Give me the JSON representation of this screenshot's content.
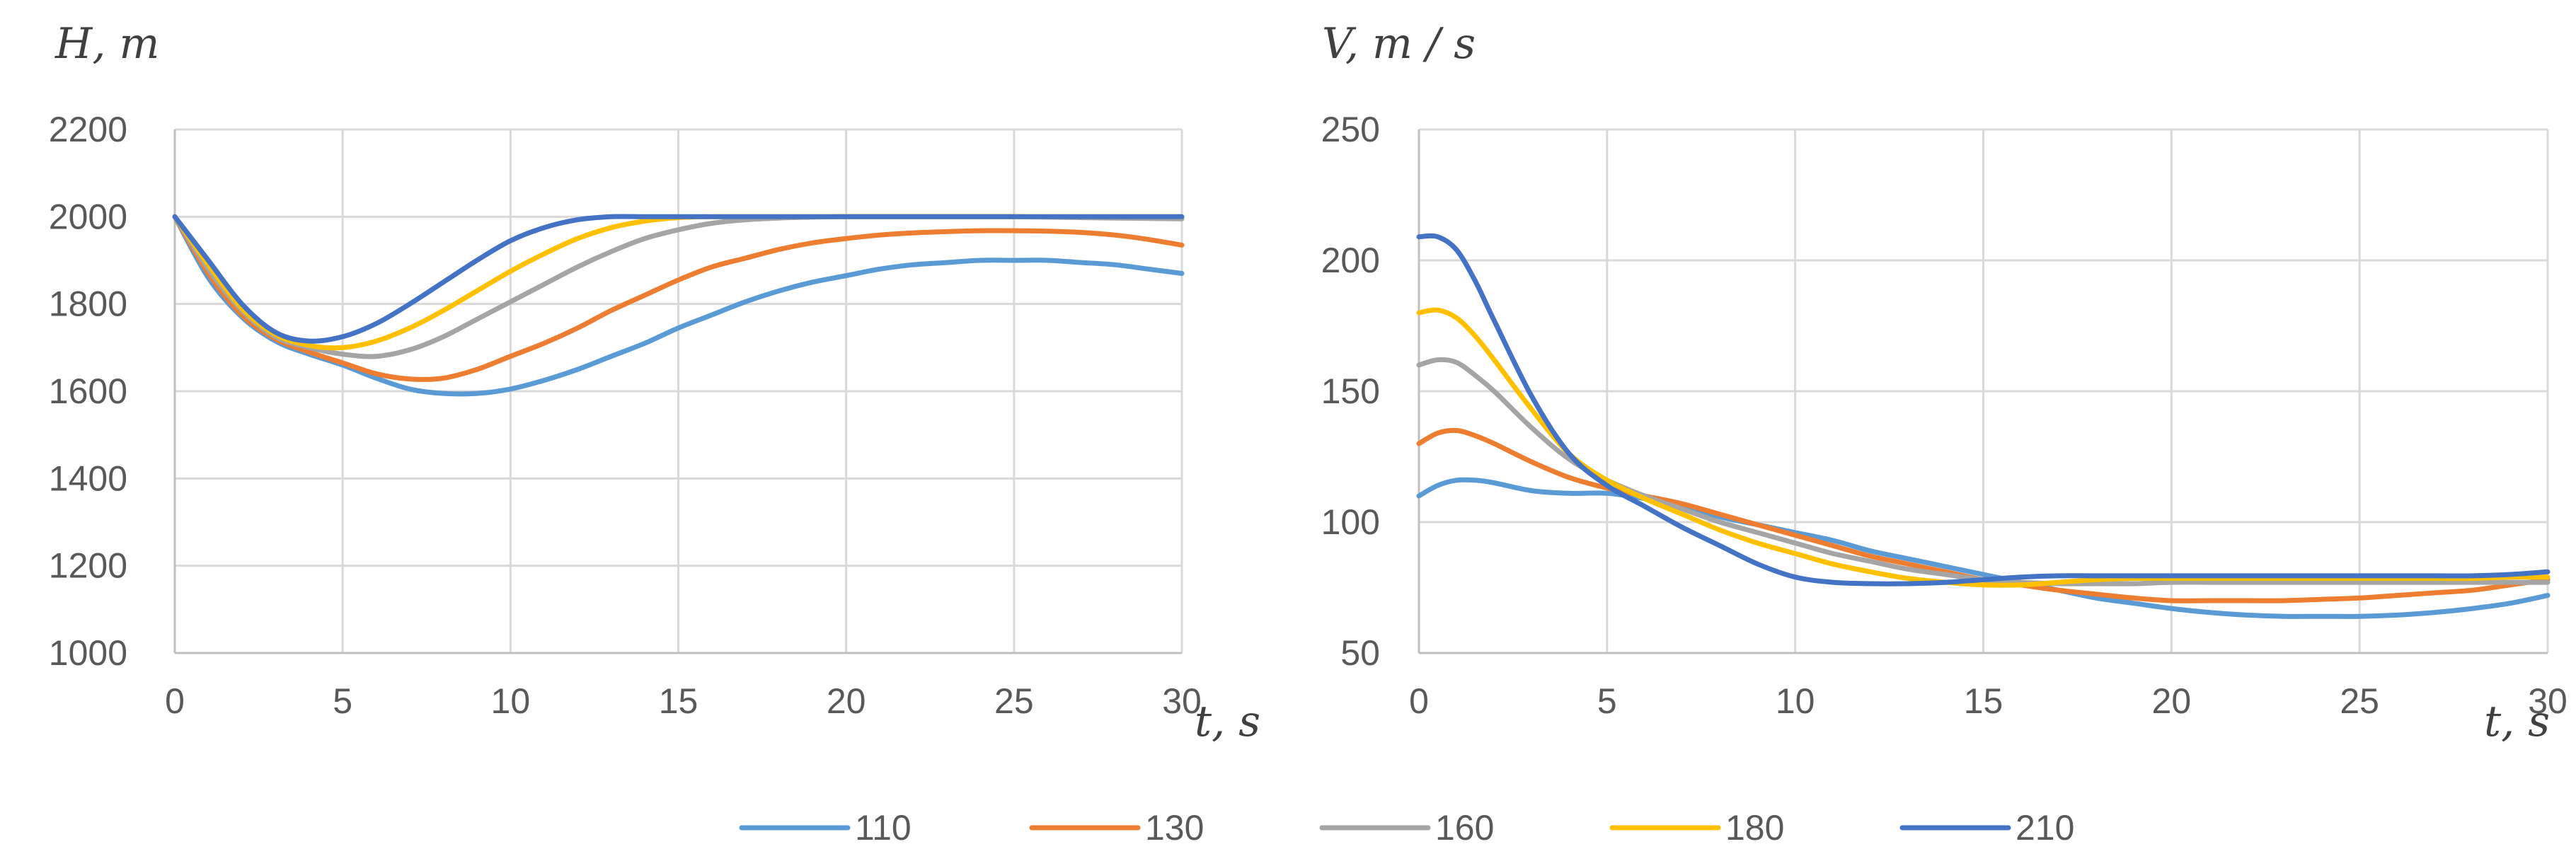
{
  "chart_data": [
    {
      "type": "line",
      "id": "height",
      "ylabel": "H, m",
      "xlabel": "t, s",
      "xlim": [
        0,
        30
      ],
      "ylim": [
        1000,
        2200
      ],
      "xticks": [
        0,
        5,
        10,
        15,
        20,
        25,
        30
      ],
      "yticks": [
        1000,
        1200,
        1400,
        1600,
        1800,
        2000,
        2200
      ],
      "x": [
        0,
        1,
        2,
        3,
        4,
        5,
        6,
        7,
        8,
        9,
        10,
        11,
        12,
        13,
        14,
        15,
        16,
        17,
        18,
        19,
        20,
        21,
        22,
        23,
        24,
        25,
        26,
        27,
        28,
        29,
        30
      ],
      "series": [
        {
          "name": "110",
          "values": [
            2000,
            1860,
            1770,
            1715,
            1685,
            1660,
            1630,
            1605,
            1595,
            1595,
            1605,
            1625,
            1650,
            1680,
            1710,
            1745,
            1775,
            1805,
            1830,
            1850,
            1865,
            1880,
            1890,
            1895,
            1900,
            1900,
            1900,
            1895,
            1890,
            1880,
            1870
          ]
        },
        {
          "name": "130",
          "values": [
            2000,
            1870,
            1775,
            1720,
            1690,
            1665,
            1640,
            1628,
            1630,
            1650,
            1680,
            1710,
            1745,
            1785,
            1820,
            1855,
            1885,
            1905,
            1925,
            1940,
            1950,
            1958,
            1963,
            1966,
            1968,
            1968,
            1967,
            1964,
            1958,
            1948,
            1935
          ]
        },
        {
          "name": "160",
          "values": [
            2000,
            1880,
            1785,
            1725,
            1700,
            1685,
            1680,
            1695,
            1725,
            1765,
            1805,
            1845,
            1885,
            1920,
            1950,
            1970,
            1985,
            1993,
            1997,
            1999,
            2000,
            2000,
            2000,
            2000,
            2000,
            2000,
            1999,
            1998,
            1997,
            1996,
            1995
          ]
        },
        {
          "name": "180",
          "values": [
            2000,
            1890,
            1790,
            1730,
            1705,
            1700,
            1715,
            1745,
            1785,
            1830,
            1875,
            1915,
            1950,
            1975,
            1990,
            1998,
            2000,
            2000,
            2000,
            2000,
            2000,
            2000,
            2000,
            2000,
            2000,
            2000,
            2000,
            2000,
            2000,
            2000,
            2000
          ]
        },
        {
          "name": "210",
          "values": [
            2000,
            1900,
            1800,
            1735,
            1715,
            1725,
            1755,
            1800,
            1850,
            1900,
            1945,
            1975,
            1993,
            2000,
            2000,
            2000,
            2000,
            2000,
            2000,
            2000,
            2000,
            2000,
            2000,
            2000,
            2000,
            2000,
            2000,
            2000,
            2000,
            2000,
            2000
          ]
        }
      ]
    },
    {
      "type": "line",
      "id": "velocity",
      "ylabel": "V, m / s",
      "xlabel": "t, s",
      "xlim": [
        0,
        30
      ],
      "ylim": [
        50,
        250
      ],
      "xticks": [
        0,
        5,
        10,
        15,
        20,
        25,
        30
      ],
      "yticks": [
        50,
        100,
        150,
        200,
        250
      ],
      "x": [
        0,
        0.5,
        1,
        1.5,
        2,
        3,
        4,
        5,
        6,
        7,
        8,
        9,
        10,
        11,
        12,
        13,
        14,
        15,
        16,
        17,
        18,
        19,
        20,
        21,
        22,
        23,
        24,
        25,
        26,
        27,
        28,
        29,
        30
      ],
      "series": [
        {
          "name": "110",
          "values": [
            110,
            114,
            116,
            116,
            115,
            112,
            111,
            111,
            109,
            106,
            102,
            99,
            96,
            93,
            89,
            86,
            83,
            80,
            77,
            74,
            71,
            69,
            67,
            65.5,
            64.5,
            64,
            64,
            64,
            64.5,
            65.5,
            67,
            69,
            72
          ]
        },
        {
          "name": "130",
          "values": [
            130,
            134,
            135,
            133,
            130,
            123,
            117,
            113,
            110,
            107,
            103,
            99,
            95,
            91,
            87,
            84,
            81,
            78,
            76,
            74,
            72.5,
            71,
            70,
            70,
            70,
            70,
            70.5,
            71,
            72,
            73,
            74,
            76,
            78
          ]
        },
        {
          "name": "160",
          "values": [
            160,
            162,
            161,
            156,
            150,
            136,
            124,
            116,
            110,
            105,
            100,
            96,
            92,
            88,
            85,
            82,
            80,
            78,
            77,
            76.5,
            76.5,
            76.5,
            77,
            77,
            77,
            77,
            77,
            77,
            77,
            77,
            77,
            77,
            77
          ]
        },
        {
          "name": "180",
          "values": [
            180,
            181,
            178,
            171,
            162,
            143,
            126,
            116,
            109,
            103,
            97,
            92,
            88,
            84,
            81,
            78.5,
            77,
            76,
            76,
            77,
            78,
            78.5,
            78.5,
            78.5,
            78.5,
            78.5,
            78.5,
            78.5,
            78.5,
            78.5,
            78.5,
            79,
            79
          ]
        },
        {
          "name": "210",
          "values": [
            209,
            209,
            204,
            192,
            177,
            148,
            126,
            114,
            106,
            98,
            91,
            84,
            79,
            77,
            76.5,
            76.5,
            77,
            78,
            79,
            79.5,
            79.5,
            79.5,
            79.5,
            79.5,
            79.5,
            79.5,
            79.5,
            79.5,
            79.5,
            79.5,
            79.5,
            80,
            81
          ]
        }
      ]
    }
  ],
  "legend": [
    {
      "name": "110",
      "color": "#5b9bd5"
    },
    {
      "name": "130",
      "color": "#ed7d31"
    },
    {
      "name": "160",
      "color": "#a5a5a5"
    },
    {
      "name": "180",
      "color": "#ffc000"
    },
    {
      "name": "210",
      "color": "#4472c4"
    }
  ]
}
